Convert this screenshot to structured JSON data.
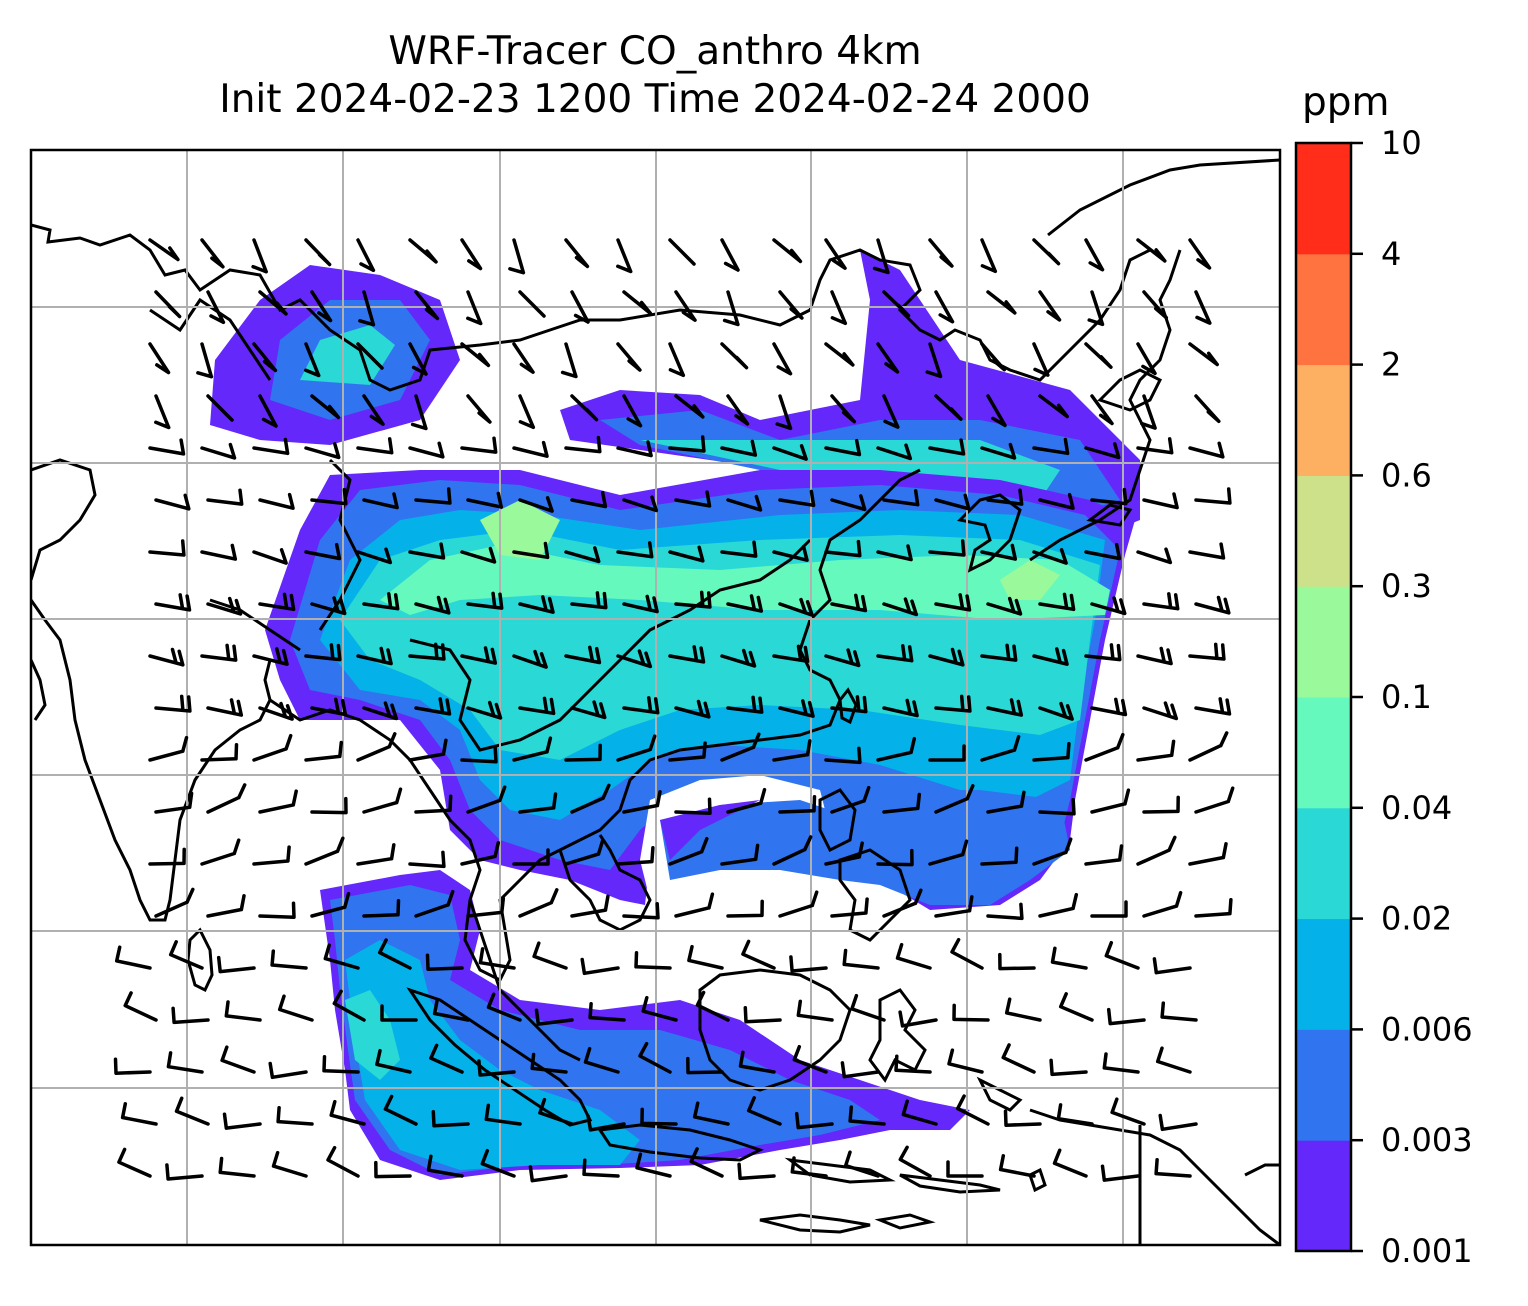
{
  "title_line1": "WRF-Tracer CO_anthro 4km",
  "title_line2": "Init 2024-02-23 1200 Time 2024-02-24 2000",
  "colorbar": {
    "unit": "ppm",
    "levels": [
      "0.001",
      "0.003",
      "0.006",
      "0.02",
      "0.04",
      "0.1",
      "0.3",
      "0.6",
      "2",
      "4",
      "10"
    ],
    "colors": [
      "#6428fa",
      "#3074f0",
      "#04b1e8",
      "#2ad8d5",
      "#66f9bd",
      "#9af99a",
      "#cde08a",
      "#fdb062",
      "#ff7340",
      "#ff2d1a"
    ]
  },
  "map": {
    "gridlines": true,
    "wind_barbs": true,
    "coastlines": true
  }
}
